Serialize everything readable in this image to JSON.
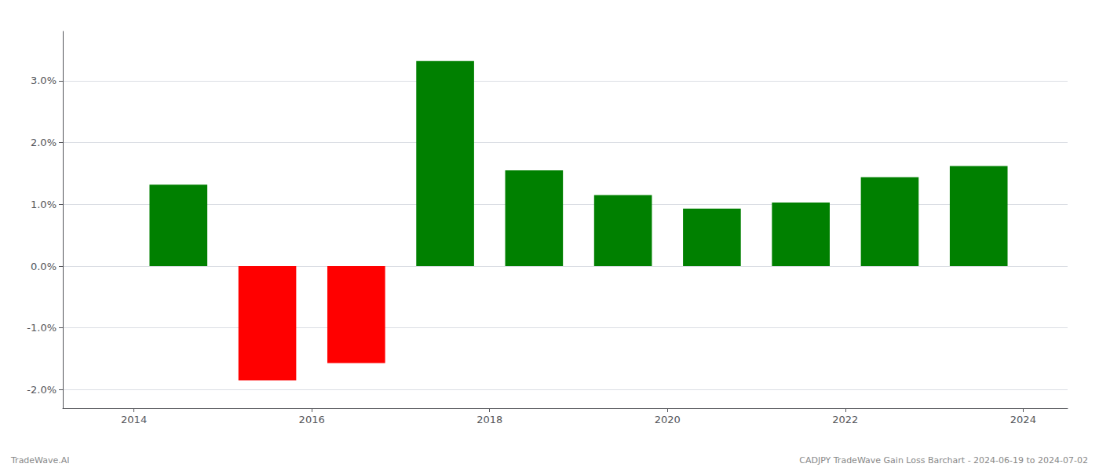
{
  "chart_data": {
    "type": "bar",
    "x": [
      2014.5,
      2015.5,
      2016.5,
      2017.5,
      2018.5,
      2019.5,
      2020.5,
      2021.5,
      2022.5,
      2023.5
    ],
    "values": [
      1.32,
      -1.85,
      -1.57,
      3.32,
      1.55,
      1.15,
      0.93,
      1.03,
      1.44,
      1.62
    ],
    "colors": [
      "#008000",
      "#ff0000",
      "#ff0000",
      "#008000",
      "#008000",
      "#008000",
      "#008000",
      "#008000",
      "#008000",
      "#008000"
    ],
    "xlim": [
      2013.2,
      2024.5
    ],
    "xticks": [
      2014,
      2016,
      2018,
      2020,
      2022,
      2024
    ],
    "ylim": [
      -2.3,
      3.8
    ],
    "yticks": [
      {
        "value": -2.0,
        "label": "-2.0%"
      },
      {
        "value": -1.0,
        "label": "-1.0%"
      },
      {
        "value": 0.0,
        "label": "0.0%"
      },
      {
        "value": 1.0,
        "label": "1.0%"
      },
      {
        "value": 2.0,
        "label": "2.0%"
      },
      {
        "value": 3.0,
        "label": "3.0%"
      }
    ],
    "grid": true,
    "annotations": [
      "TradeWave.AI",
      "CADJPY TradeWave Gain Loss Barchart - 2024-06-19 to 2024-07-02"
    ]
  }
}
